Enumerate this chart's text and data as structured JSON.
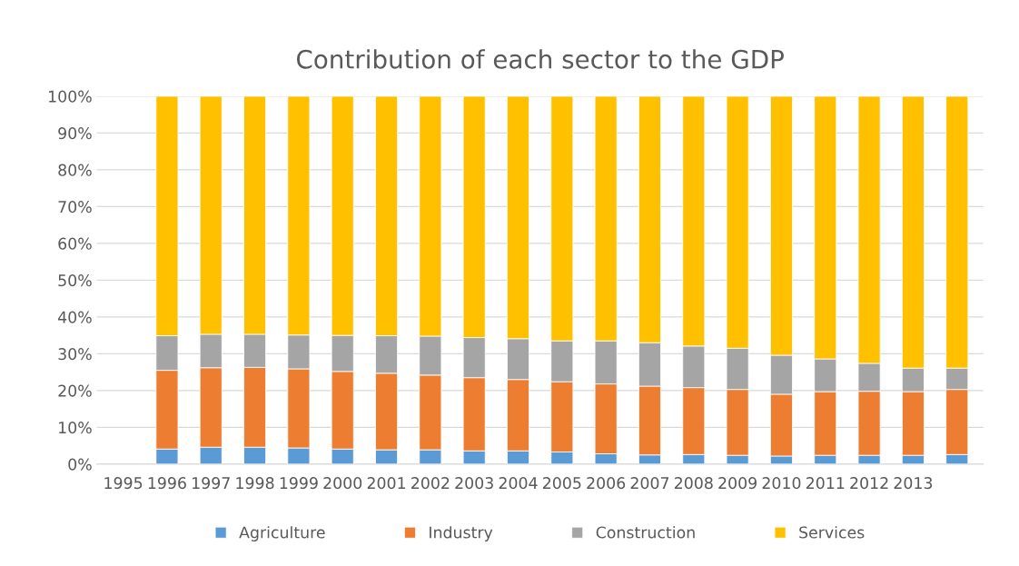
{
  "chart_data": {
    "type": "bar",
    "title": "Contribution of each sector to the GDP",
    "stacked": true,
    "categories": [
      "1995",
      "1996",
      "1997",
      "1998",
      "1999",
      "2000",
      "2001",
      "2002",
      "2003",
      "2004",
      "2005",
      "2006",
      "2007",
      "2008",
      "2009",
      "2010",
      "2011",
      "2012",
      "2013",
      null
    ],
    "series": [
      {
        "name": "Agriculture",
        "color": "#5b9bd5",
        "values": [
          null,
          4.1,
          4.6,
          4.6,
          4.4,
          4.1,
          3.9,
          3.9,
          3.6,
          3.6,
          3.3,
          2.8,
          2.5,
          2.6,
          2.4,
          2.2,
          2.4,
          2.4,
          2.4,
          2.6
        ]
      },
      {
        "name": "Industry",
        "color": "#ed7d31",
        "values": [
          null,
          21.4,
          21.6,
          21.7,
          21.5,
          21.1,
          20.8,
          20.3,
          19.9,
          19.4,
          19.1,
          19.0,
          18.7,
          18.2,
          17.9,
          16.8,
          17.3,
          17.4,
          17.3,
          17.7
        ]
      },
      {
        "name": "Construction",
        "color": "#a5a5a5",
        "values": [
          null,
          9.4,
          9.1,
          9.0,
          9.2,
          9.8,
          10.2,
          10.6,
          10.9,
          11.1,
          11.1,
          11.7,
          11.8,
          11.3,
          11.2,
          10.6,
          8.9,
          7.6,
          6.4,
          5.8
        ]
      },
      {
        "name": "Services",
        "color": "#ffc000",
        "values": [
          null,
          65.1,
          64.7,
          64.7,
          64.9,
          65.0,
          65.1,
          65.2,
          65.6,
          65.9,
          66.5,
          66.5,
          67.0,
          67.9,
          68.5,
          70.4,
          71.4,
          72.6,
          73.9,
          73.9
        ]
      }
    ],
    "ylim": [
      0,
      100
    ],
    "yticks": [
      {
        "value": 0,
        "label": "0%"
      },
      {
        "value": 10,
        "label": "10%"
      },
      {
        "value": 20,
        "label": "20%"
      },
      {
        "value": 30,
        "label": "30%"
      },
      {
        "value": 40,
        "label": "40%"
      },
      {
        "value": 50,
        "label": "50%"
      },
      {
        "value": 60,
        "label": "60%"
      },
      {
        "value": 70,
        "label": "70%"
      },
      {
        "value": 80,
        "label": "80%"
      },
      {
        "value": 90,
        "label": "90%"
      },
      {
        "value": 100,
        "label": "100%"
      }
    ],
    "grid": "y",
    "legend": "bottom"
  }
}
